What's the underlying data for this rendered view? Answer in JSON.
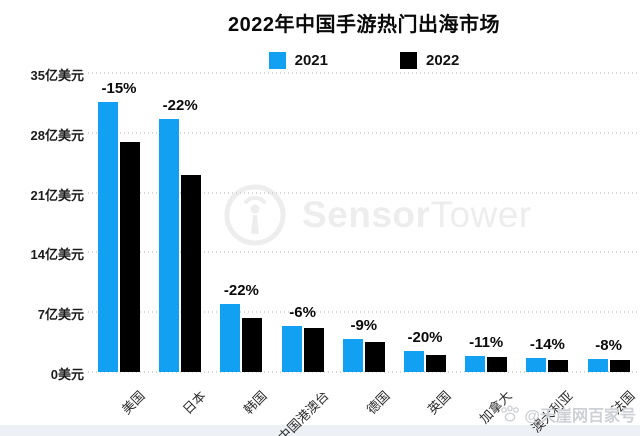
{
  "title": "2022年中国手游热门出海市场",
  "legend": [
    {
      "label": "2021",
      "color": "#12a0f3"
    },
    {
      "label": "2022",
      "color": "#000000"
    }
  ],
  "watermark": {
    "logo_icon": "sensortower-logo-icon",
    "logo_text_bold": "Sensor",
    "logo_text_light": "Tower",
    "color": "#ededed"
  },
  "footer_watermark": {
    "icon": "paw-icon",
    "text": "@天崖网百家号",
    "color": "#cdd0d5"
  },
  "colors": {
    "bar_2021": "#12a0f3",
    "bar_2022": "#000000",
    "gridline": "#cfcfcf",
    "background": "#ffffff",
    "bottom_strip": "#edf0f4"
  },
  "chart_data": {
    "type": "bar",
    "title": "2022年中国手游热门出海市场",
    "categories": [
      "美国",
      "日本",
      "韩国",
      "中国港澳台",
      "德国",
      "英国",
      "加拿大",
      "澳大利亚",
      "法国"
    ],
    "series": [
      {
        "name": "2021",
        "color": "#12a0f3",
        "values": [
          31.6,
          29.6,
          8.0,
          5.4,
          3.9,
          2.5,
          1.9,
          1.6,
          1.5
        ]
      },
      {
        "name": "2022",
        "color": "#000000",
        "values": [
          26.9,
          23.1,
          6.3,
          5.1,
          3.5,
          2.0,
          1.7,
          1.4,
          1.4
        ]
      }
    ],
    "change_labels": [
      "-15%",
      "-22%",
      "-22%",
      "-6%",
      "-9%",
      "-20%",
      "-11%",
      "-14%",
      "-8%"
    ],
    "y_ticks": {
      "values": [
        35,
        28,
        21,
        14,
        7,
        0
      ],
      "labels": [
        "35亿美元",
        "28亿美元",
        "21亿美元",
        "14亿美元",
        "7亿美元",
        "0美元"
      ]
    },
    "ylim": [
      0,
      35
    ],
    "y_unit": "亿美元",
    "grid": "dotted-horizontal",
    "legend_position": "top-center",
    "xlabel_rotation": -45
  }
}
